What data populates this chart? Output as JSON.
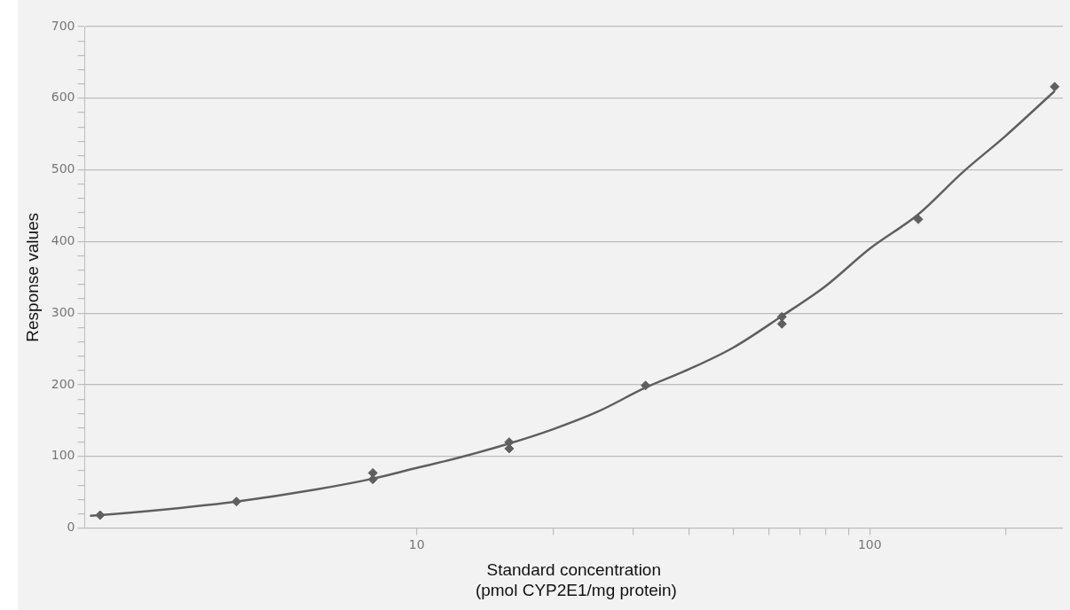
{
  "chart_data": {
    "type": "scatter",
    "xlabel": "Standard concentration\n (pmol CYP2E1/mg protein)",
    "ylabel": "Response values",
    "log": "x",
    "grid": "y",
    "legend": false,
    "xlim": [
      1.85,
      267
    ],
    "xticks": [
      {
        "value": 10,
        "label": "10"
      },
      {
        "value": 20,
        "label": null
      },
      {
        "value": 30,
        "label": null
      },
      {
        "value": 40,
        "label": null
      },
      {
        "value": 50,
        "label": null
      },
      {
        "value": 60,
        "label": null
      },
      {
        "value": 70,
        "label": null
      },
      {
        "value": 80,
        "label": null
      },
      {
        "value": 90,
        "label": null
      },
      {
        "value": 100,
        "label": "100"
      },
      {
        "value": 200,
        "label": null
      }
    ],
    "ylim": [
      0,
      700
    ],
    "yticks": [
      0,
      {
        "value": 20,
        "label": null
      },
      {
        "value": 40,
        "label": null
      },
      {
        "value": 60,
        "label": null
      },
      {
        "value": 80,
        "label": null
      },
      100,
      {
        "value": 120,
        "label": null
      },
      {
        "value": 140,
        "label": null
      },
      {
        "value": 160,
        "label": null
      },
      {
        "value": 180,
        "label": null
      },
      200,
      {
        "value": 220,
        "label": null
      },
      {
        "value": 240,
        "label": null
      },
      {
        "value": 260,
        "label": null
      },
      {
        "value": 280,
        "label": null
      },
      300,
      {
        "value": 320,
        "label": null
      },
      {
        "value": 340,
        "label": null
      },
      {
        "value": 360,
        "label": null
      },
      {
        "value": 380,
        "label": null
      },
      400,
      {
        "value": 420,
        "label": null
      },
      {
        "value": 440,
        "label": null
      },
      {
        "value": 460,
        "label": null
      },
      {
        "value": 480,
        "label": null
      },
      500,
      {
        "value": 520,
        "label": null
      },
      {
        "value": 540,
        "label": null
      },
      {
        "value": 560,
        "label": null
      },
      {
        "value": 580,
        "label": null
      },
      600,
      {
        "value": 620,
        "label": null
      },
      {
        "value": 640,
        "label": null
      },
      {
        "value": 660,
        "label": null
      },
      {
        "value": 680,
        "label": null
      },
      700
    ],
    "series": [
      {
        "type": "scatter",
        "marker": "diamond",
        "color": "#5f5f5f",
        "x": [
          2,
          4,
          8,
          8,
          16,
          16,
          32,
          64,
          64,
          128,
          256
        ],
        "values": [
          18,
          37,
          77,
          68,
          120,
          111,
          199,
          295,
          285,
          431,
          616
        ]
      },
      {
        "type": "line",
        "marker": "none",
        "color": "#5f5f5f",
        "x": [
          1.9,
          2,
          3,
          4,
          6,
          8,
          10,
          12,
          16,
          20,
          25,
          32,
          40,
          50,
          64,
          80,
          100,
          128,
          160,
          200,
          256
        ],
        "values": [
          17,
          18,
          28,
          37,
          54,
          69,
          84,
          96,
          118,
          138,
          162,
          196,
          222,
          252,
          296,
          338,
          390,
          438,
          496,
          548,
          610
        ]
      }
    ]
  }
}
